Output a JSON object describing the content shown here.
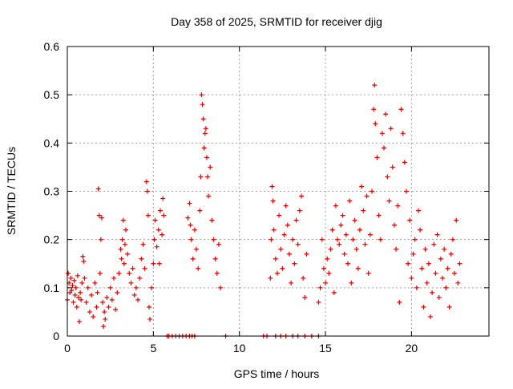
{
  "chart_data": {
    "type": "scatter",
    "title": "Day 358 of 2025, SRMTID for receiver djig",
    "xlabel": "GPS time / hours",
    "ylabel": "SRMTID / TECUs",
    "xlim": [
      0,
      24.5
    ],
    "ylim": [
      0,
      0.6
    ],
    "x_ticks": [
      0,
      5,
      10,
      15,
      20
    ],
    "x_tick_labels": [
      "0",
      "5",
      "10",
      "15",
      "20"
    ],
    "y_ticks": [
      0,
      0.1,
      0.2,
      0.3,
      0.4,
      0.5,
      0.6
    ],
    "y_tick_labels": [
      "0",
      "0.1",
      "0.2",
      "0.3",
      "0.4",
      "0.5",
      "0.6"
    ],
    "grid": true,
    "marker": "+",
    "series": [
      {
        "name": "SRMTID",
        "color": "#e00000",
        "points": [
          [
            0.0,
            0.075
          ],
          [
            0.05,
            0.13
          ],
          [
            0.1,
            0.11
          ],
          [
            0.15,
            0.09
          ],
          [
            0.2,
            0.12
          ],
          [
            0.25,
            0.095
          ],
          [
            0.3,
            0.105
          ],
          [
            0.35,
            0.07
          ],
          [
            0.4,
            0.115
          ],
          [
            0.45,
            0.085
          ],
          [
            0.5,
            0.1
          ],
          [
            0.55,
            0.06
          ],
          [
            0.6,
            0.125
          ],
          [
            0.65,
            0.08
          ],
          [
            0.7,
            0.03
          ],
          [
            0.75,
            0.09
          ],
          [
            0.8,
            0.075
          ],
          [
            0.85,
            0.11
          ],
          [
            0.9,
            0.165
          ],
          [
            0.95,
            0.155
          ],
          [
            1.0,
            0.12
          ],
          [
            1.1,
            0.07
          ],
          [
            1.2,
            0.1
          ],
          [
            1.3,
            0.05
          ],
          [
            1.4,
            0.085
          ],
          [
            1.5,
            0.04
          ],
          [
            1.6,
            0.11
          ],
          [
            1.7,
            0.06
          ],
          [
            1.75,
            0.09
          ],
          [
            1.8,
            0.305
          ],
          [
            1.85,
            0.25
          ],
          [
            1.9,
            0.13
          ],
          [
            1.95,
            0.2
          ],
          [
            2.0,
            0.245
          ],
          [
            2.05,
            0.07
          ],
          [
            2.1,
            0.02
          ],
          [
            2.15,
            0.05
          ],
          [
            2.2,
            0.035
          ],
          [
            2.3,
            0.08
          ],
          [
            2.4,
            0.06
          ],
          [
            2.5,
            0.1
          ],
          [
            2.6,
            0.075
          ],
          [
            2.7,
            0.12
          ],
          [
            2.8,
            0.055
          ],
          [
            2.9,
            0.09
          ],
          [
            3.0,
            0.13
          ],
          [
            3.1,
            0.18
          ],
          [
            3.15,
            0.16
          ],
          [
            3.2,
            0.2
          ],
          [
            3.25,
            0.24
          ],
          [
            3.3,
            0.15
          ],
          [
            3.35,
            0.19
          ],
          [
            3.4,
            0.22
          ],
          [
            3.5,
            0.17
          ],
          [
            3.6,
            0.13
          ],
          [
            3.7,
            0.11
          ],
          [
            3.8,
            0.14
          ],
          [
            3.9,
            0.085
          ],
          [
            4.0,
            0.1
          ],
          [
            4.1,
            0.075
          ],
          [
            4.2,
            0.12
          ],
          [
            4.3,
            0.16
          ],
          [
            4.4,
            0.19
          ],
          [
            4.5,
            0.14
          ],
          [
            4.6,
            0.32
          ],
          [
            4.65,
            0.3
          ],
          [
            4.7,
            0.25
          ],
          [
            4.75,
            0.06
          ],
          [
            4.8,
            0.035
          ],
          [
            4.9,
            0.1
          ],
          [
            5.0,
            0.15
          ],
          [
            5.05,
            0.2
          ],
          [
            5.1,
            0.24
          ],
          [
            5.2,
            0.185
          ],
          [
            5.3,
            0.22
          ],
          [
            5.35,
            0.15
          ],
          [
            5.4,
            0.26
          ],
          [
            5.5,
            0.21
          ],
          [
            5.55,
            0.285
          ],
          [
            5.6,
            0.25
          ],
          [
            7.0,
            0.245
          ],
          [
            7.1,
            0.275
          ],
          [
            7.15,
            0.23
          ],
          [
            7.2,
            0.2
          ],
          [
            7.3,
            0.16
          ],
          [
            7.4,
            0.22
          ],
          [
            7.5,
            0.18
          ],
          [
            7.6,
            0.14
          ],
          [
            7.7,
            0.26
          ],
          [
            7.75,
            0.33
          ],
          [
            7.8,
            0.5
          ],
          [
            7.85,
            0.48
          ],
          [
            7.9,
            0.45
          ],
          [
            7.95,
            0.39
          ],
          [
            8.0,
            0.42
          ],
          [
            8.05,
            0.43
          ],
          [
            8.1,
            0.37
          ],
          [
            8.15,
            0.33
          ],
          [
            8.2,
            0.29
          ],
          [
            8.3,
            0.35
          ],
          [
            8.4,
            0.24
          ],
          [
            8.5,
            0.2
          ],
          [
            8.6,
            0.16
          ],
          [
            8.7,
            0.13
          ],
          [
            8.8,
            0.19
          ],
          [
            8.9,
            0.1
          ],
          [
            11.8,
            0.12
          ],
          [
            11.85,
            0.2
          ],
          [
            11.9,
            0.31
          ],
          [
            11.95,
            0.28
          ],
          [
            12.0,
            0.22
          ],
          [
            12.1,
            0.16
          ],
          [
            12.2,
            0.13
          ],
          [
            12.3,
            0.25
          ],
          [
            12.4,
            0.18
          ],
          [
            12.5,
            0.14
          ],
          [
            12.6,
            0.21
          ],
          [
            12.7,
            0.27
          ],
          [
            12.8,
            0.23
          ],
          [
            12.9,
            0.17
          ],
          [
            13.0,
            0.11
          ],
          [
            13.1,
            0.2
          ],
          [
            13.2,
            0.15
          ],
          [
            13.3,
            0.24
          ],
          [
            13.4,
            0.19
          ],
          [
            13.5,
            0.26
          ],
          [
            13.6,
            0.29
          ],
          [
            13.7,
            0.12
          ],
          [
            13.8,
            0.08
          ],
          [
            13.9,
            0.17
          ],
          [
            14.6,
            0.07
          ],
          [
            14.7,
            0.1
          ],
          [
            14.8,
            0.2
          ],
          [
            14.9,
            0.14
          ],
          [
            15.0,
            0.11
          ],
          [
            15.1,
            0.16
          ],
          [
            15.2,
            0.13
          ],
          [
            15.3,
            0.18
          ],
          [
            15.4,
            0.22
          ],
          [
            15.5,
            0.09
          ],
          [
            15.6,
            0.27
          ],
          [
            15.7,
            0.2
          ],
          [
            15.8,
            0.19
          ],
          [
            15.9,
            0.23
          ],
          [
            16.0,
            0.25
          ],
          [
            16.1,
            0.17
          ],
          [
            16.2,
            0.21
          ],
          [
            16.3,
            0.15
          ],
          [
            16.4,
            0.28
          ],
          [
            16.5,
            0.11
          ],
          [
            16.6,
            0.2
          ],
          [
            16.7,
            0.24
          ],
          [
            16.8,
            0.18
          ],
          [
            16.9,
            0.14
          ],
          [
            17.0,
            0.22
          ],
          [
            17.1,
            0.31
          ],
          [
            17.2,
            0.26
          ],
          [
            17.3,
            0.19
          ],
          [
            17.4,
            0.29
          ],
          [
            17.5,
            0.13
          ],
          [
            17.6,
            0.21
          ],
          [
            17.7,
            0.3
          ],
          [
            17.8,
            0.47
          ],
          [
            17.85,
            0.52
          ],
          [
            17.9,
            0.44
          ],
          [
            18.0,
            0.37
          ],
          [
            18.1,
            0.25
          ],
          [
            18.2,
            0.2
          ],
          [
            18.3,
            0.42
          ],
          [
            18.4,
            0.39
          ],
          [
            18.5,
            0.46
          ],
          [
            18.6,
            0.33
          ],
          [
            18.7,
            0.28
          ],
          [
            18.8,
            0.43
          ],
          [
            18.9,
            0.35
          ],
          [
            19.0,
            0.23
          ],
          [
            19.1,
            0.18
          ],
          [
            19.2,
            0.27
          ],
          [
            19.3,
            0.07
          ],
          [
            19.4,
            0.47
          ],
          [
            19.5,
            0.42
          ],
          [
            19.6,
            0.36
          ],
          [
            19.7,
            0.3
          ],
          [
            19.8,
            0.15
          ],
          [
            19.9,
            0.24
          ],
          [
            20.0,
            0.12
          ],
          [
            20.1,
            0.17
          ],
          [
            20.2,
            0.2
          ],
          [
            20.3,
            0.1
          ],
          [
            20.4,
            0.26
          ],
          [
            20.5,
            0.22
          ],
          [
            20.6,
            0.14
          ],
          [
            20.7,
            0.06
          ],
          [
            20.8,
            0.18
          ],
          [
            20.9,
            0.11
          ],
          [
            21.0,
            0.15
          ],
          [
            21.1,
            0.04
          ],
          [
            21.2,
            0.09
          ],
          [
            21.3,
            0.19
          ],
          [
            21.4,
            0.13
          ],
          [
            21.5,
            0.21
          ],
          [
            21.6,
            0.08
          ],
          [
            21.7,
            0.16
          ],
          [
            21.8,
            0.12
          ],
          [
            21.9,
            0.18
          ],
          [
            22.0,
            0.1
          ],
          [
            22.1,
            0.14
          ],
          [
            22.2,
            0.06
          ],
          [
            22.3,
            0.17
          ],
          [
            22.4,
            0.2
          ],
          [
            22.5,
            0.13
          ],
          [
            22.6,
            0.24
          ],
          [
            22.7,
            0.11
          ],
          [
            22.8,
            0.15
          ]
        ],
        "zero_points": [
          5.8,
          5.9,
          6.1,
          6.3,
          6.5,
          6.7,
          6.9,
          7.1,
          7.25,
          7.4,
          9.2,
          11.4,
          11.6,
          12.1,
          12.4,
          12.7,
          13.1,
          13.4,
          13.8,
          14.2,
          14.6
        ]
      }
    ]
  }
}
